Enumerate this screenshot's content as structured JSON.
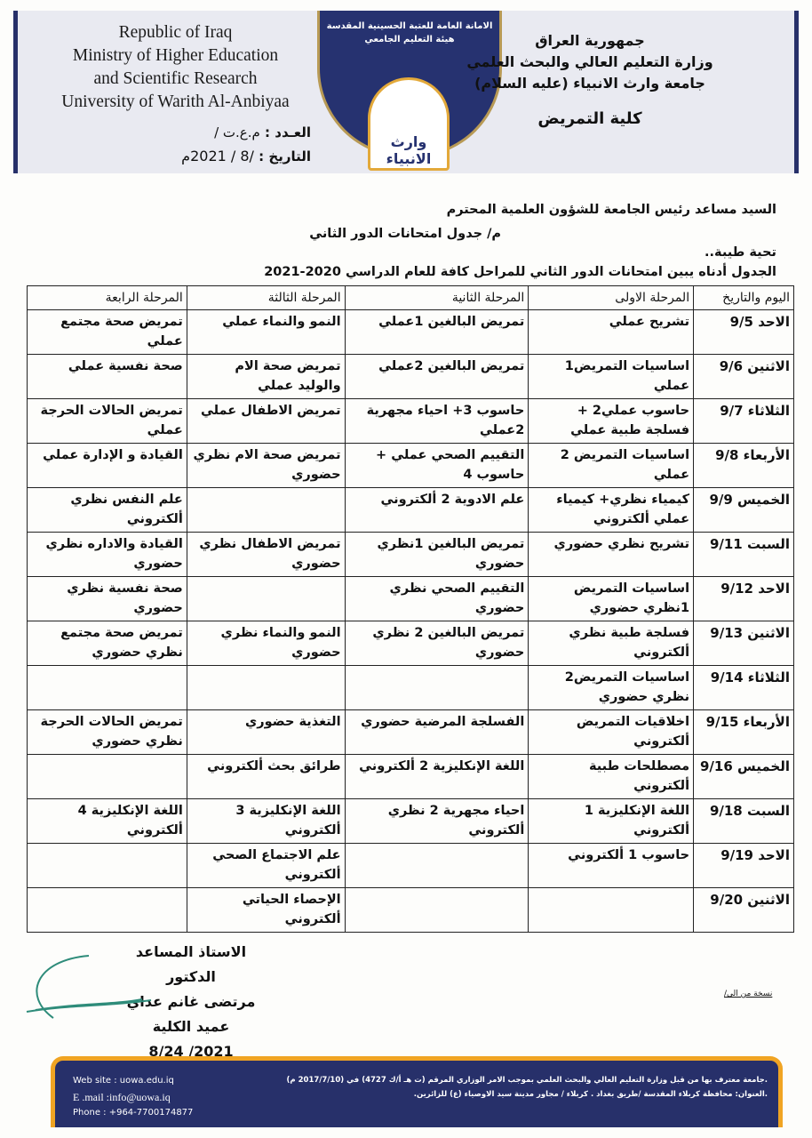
{
  "header": {
    "english_lines": [
      "Republic of Iraq",
      "Ministry of Higher Education",
      "and Scientific Research",
      "University of Warith Al-Anbiyaa"
    ],
    "arabic_lines": [
      "جمهورية العراق",
      "وزارة التعليم العالي والبحث العلمي",
      "جامعة وارث الانبياء (عليه السلام)"
    ],
    "college": "كلية التمريض",
    "ref_label": "العـدد :",
    "ref_value": "م.ع.ت /",
    "date_label": "التاريخ :",
    "date_value": "/8 / 2021م",
    "logo_text_1": "الامانة العامة للعتبة الحسينية المقدسة",
    "logo_text_2": "هيئة التعليم الجامعي",
    "logo_name": "وارث الانبياء"
  },
  "letter": {
    "addressee": "السيد مساعد رئيس الجامعة للشؤون العلمية المحترم",
    "subject": "م/ جدول امتحانات الدور الثاني",
    "greeting": "تحية طيبة..",
    "intro": "الجدول أدناه يبين امتحانات الدور الثاني للمراحل كافة للعام الدراسي 2020-2021"
  },
  "table": {
    "headers": [
      "اليوم والتاريخ",
      "المرحلة الاولى",
      "المرحلة الثانية",
      "المرحلة الثالثة",
      "المرحلة الرابعة"
    ],
    "rows": [
      [
        "الاحد 9/5",
        "تشريح عملي",
        "تمريض البالغين 1عملي",
        "النمو والنماء عملي",
        "تمريض صحة مجتمع عملي"
      ],
      [
        "الاثنين 9/6",
        "اساسيات التمريض1 عملي",
        "تمريض البالغين 2عملي",
        "تمريض صحة الام والوليد عملي",
        "صحة نفسية عملي"
      ],
      [
        "الثلاثاء 9/7",
        "حاسوب عملي2 + فسلجة طبية عملي",
        "حاسوب 3+ احياء مجهرية 2عملي",
        "تمريض الاطفال عملي",
        "تمريض الحالات الحرجة عملي"
      ],
      [
        "الأربعاء 9/8",
        "اساسيات التمريض 2 عملي",
        "التقييم الصحي عملي + حاسوب 4",
        "تمريض صحة الام نظري حضوري",
        "القيادة و الإدارة عملي"
      ],
      [
        "الخميس 9/9",
        "كيمياء نظري+ كيمياء عملي ألكتروني",
        "علم الادوية 2 ألكتروني",
        "",
        "علم النفس نظري ألكتروني"
      ],
      [
        "السبت 9/11",
        "تشريح نظري حضوري",
        "تمريض البالغين 1نظري حضوري",
        "تمريض الاطفال نظري حضوري",
        "القيادة والاداره نظري حضوري"
      ],
      [
        "الاحد 9/12",
        "اساسيات التمريض 1نظري حضوري",
        "التقييم الصحي نظري حضوري",
        "",
        "صحة نفسية نظري حضوري"
      ],
      [
        "الاثنين 9/13",
        "فسلجة طبية نظري ألكتروني",
        "تمريض البالغين 2 نظري حضوري",
        "النمو والنماء نظري حضوري",
        "تمريض صحة مجتمع نظري حضوري"
      ],
      [
        "الثلاثاء 9/14",
        "اساسيات التمريض2 نظري حضوري",
        "",
        "",
        ""
      ],
      [
        "الأربعاء 9/15",
        "اخلاقيات التمريض ألكتروني",
        "الفسلجة المرضية حضوري",
        "التغذية حضوري",
        "تمريض الحالات الحرجة نظري حضوري"
      ],
      [
        "الخميس 9/16",
        "مصطلحات طبية ألكتروني",
        "اللغة الإنكليزية 2 ألكتروني",
        "طرائق بحث ألكتروني",
        ""
      ],
      [
        "السبت 9/18",
        "اللغة الإنكليزية 1 ألكتروني",
        "احياء مجهرية 2 نظري ألكتروني",
        "اللغة الإنكليزية 3 ألكتروني",
        "اللغة الإنكليزية 4 ألكتروني"
      ],
      [
        "الاحد 9/19",
        "حاسوب 1 ألكتروني",
        "",
        "علم الاجتماع الصحي ألكتروني",
        ""
      ],
      [
        "الاثنين 9/20",
        "",
        "",
        "الإحصاء الحياتي ألكتروني",
        ""
      ]
    ]
  },
  "signature": {
    "title": "الاستاذ المساعد الدكتور",
    "name": "مرتضى غانم عداي",
    "position": "عميد الكلية",
    "date": "2021/ 8/24"
  },
  "copy_note": "نسخة من الى/",
  "footer": {
    "website": "Web site   :  uowa.edu.iq",
    "email": "E .mail :info@uowa.iq",
    "phone": "Phone   : +964-7700174877",
    "recognition": ".جامعة معترف بها من قبل وزارة التعليم العالي والبحث العلمي بموجب الامر الوزاري المرقم (ت هـ أ/ك 4727) في (2017/7/10 م)",
    "address": ".العنوان: محافظة كربلاء المقدسة /طريق بغداد . كربلاء / مجاور مدينة سيد الاوصياء (ع) للزائرين."
  },
  "colors": {
    "navy": "#27306a",
    "gold": "#f0a423",
    "band": "#e9eaf1"
  }
}
